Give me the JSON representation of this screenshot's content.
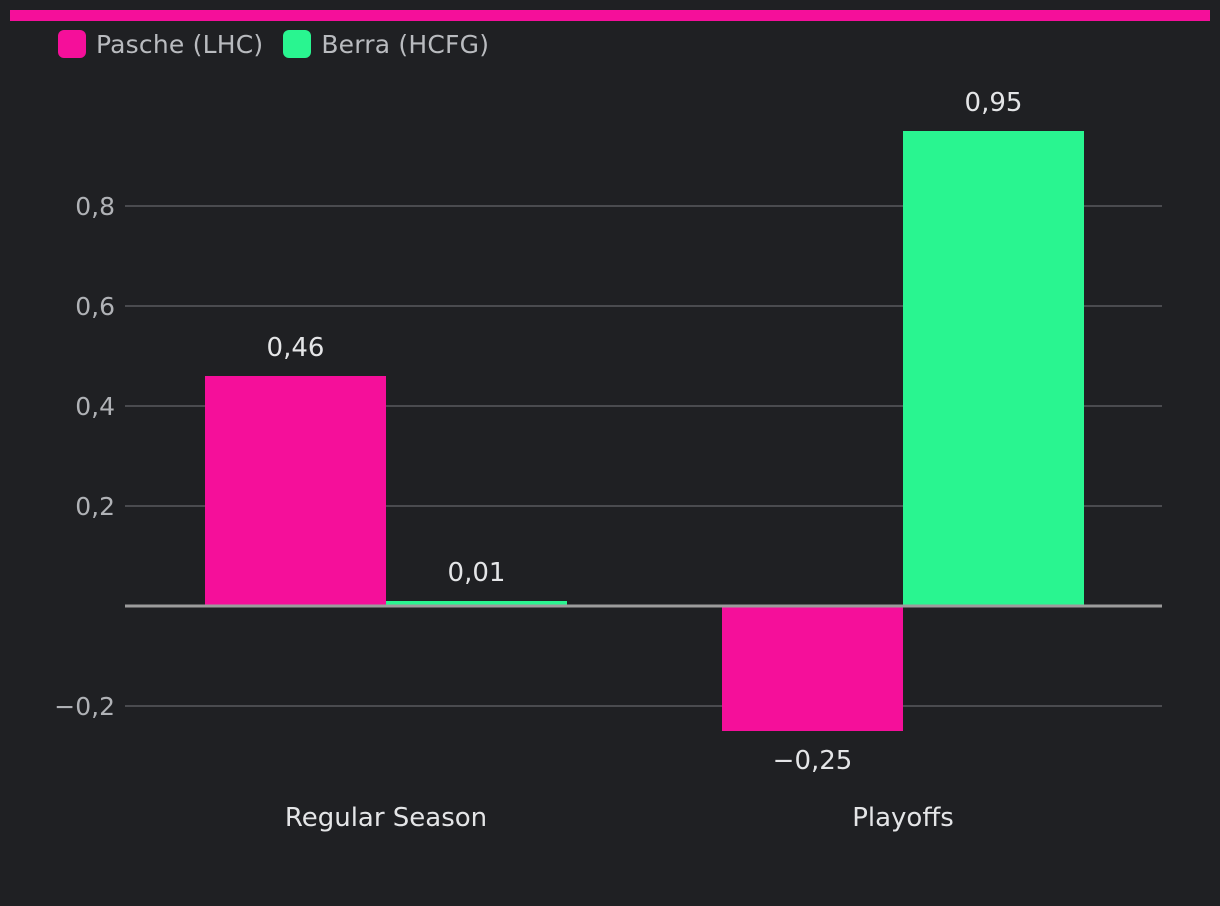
{
  "colors": {
    "background": "#1f2023",
    "accent_bar": "#f50f9a",
    "series_1": "#f50f9a",
    "series_2": "#29f590",
    "grid": "#4a4b4f",
    "zero_line": "#9c9c9c",
    "tick_text": "#b0b2b6",
    "label_text": "#e4e5e7"
  },
  "legend": {
    "items": [
      {
        "label": "Pasche (LHC)",
        "color": "#f50f9a"
      },
      {
        "label": "Berra (HCFG)",
        "color": "#29f590"
      }
    ]
  },
  "chart_data": {
    "type": "bar",
    "title": "",
    "xlabel": "",
    "ylabel": "",
    "categories": [
      "Regular Season",
      "Playoffs"
    ],
    "series": [
      {
        "name": "Pasche (LHC)",
        "values": [
          0.46,
          -0.25
        ],
        "labels": [
          "0,46",
          "−0,25"
        ]
      },
      {
        "name": "Berra (HCFG)",
        "values": [
          0.01,
          0.95
        ],
        "labels": [
          "0,01",
          "0,95"
        ]
      }
    ],
    "ylim": [
      -0.28,
      1.0
    ],
    "yticks": [
      -0.2,
      0.2,
      0.4,
      0.6,
      0.8
    ],
    "ytick_labels": [
      "−0,2",
      "0,2",
      "0,4",
      "0,6",
      "0,8"
    ],
    "grid": true,
    "legend_position": "top-left"
  }
}
